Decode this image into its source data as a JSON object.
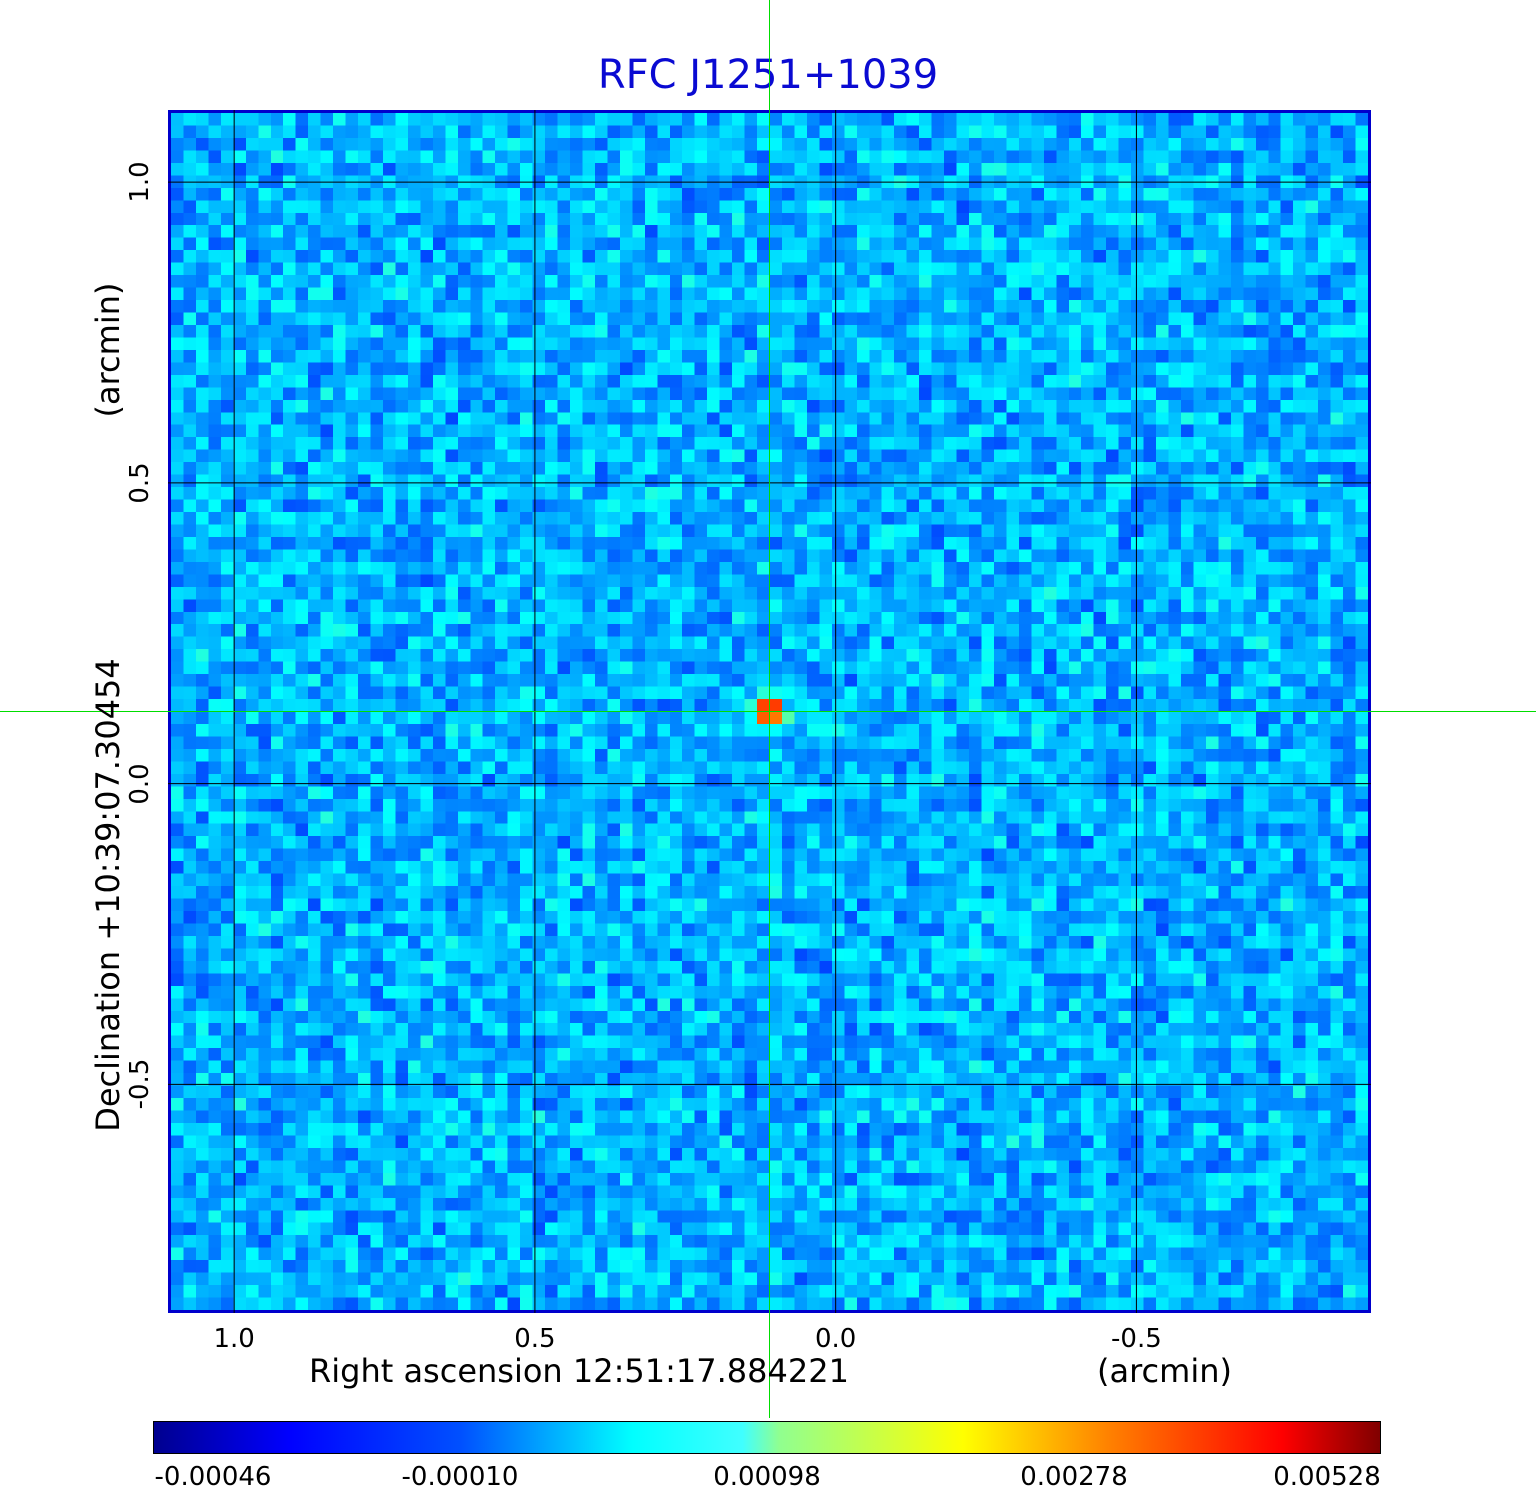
{
  "chart_data": {
    "type": "heatmap",
    "title": "RFC J1251+1039",
    "xlabel": "Right ascension  12:51:17.884221",
    "xunit": "(arcmin)",
    "ylabel": "Declination  +10:39:07.30454",
    "yunit": "(arcmin)",
    "xlim": [
      1.11,
      -0.89
    ],
    "ylim": [
      -0.88,
      1.12
    ],
    "x_ticks": [
      "1.0",
      "0.5",
      "0.0",
      "-0.5"
    ],
    "x_tick_values": [
      1.0,
      0.5,
      0.0,
      -0.5
    ],
    "y_ticks": [
      "1.0",
      "0.5",
      "0.0",
      "-0.5"
    ],
    "y_tick_values": [
      1.0,
      0.5,
      0.0,
      -0.5
    ],
    "grid": true,
    "colormap": "jet",
    "source_peak": {
      "x": 0.11,
      "y": 0.12,
      "value": 0.00528
    },
    "crosshair": {
      "x": 0.11,
      "y": 0.12,
      "color": "#00dd00"
    },
    "colorbar": {
      "ticks": [
        "-0.00046",
        "-0.00010",
        "0.00098",
        "0.00278",
        "0.00528"
      ],
      "min": -0.00046,
      "max": 0.00528
    }
  },
  "colors": {
    "title": "#0a0ad2",
    "frame": "#0000cc",
    "crosshair": "#00dd00",
    "grid": "#000000"
  }
}
